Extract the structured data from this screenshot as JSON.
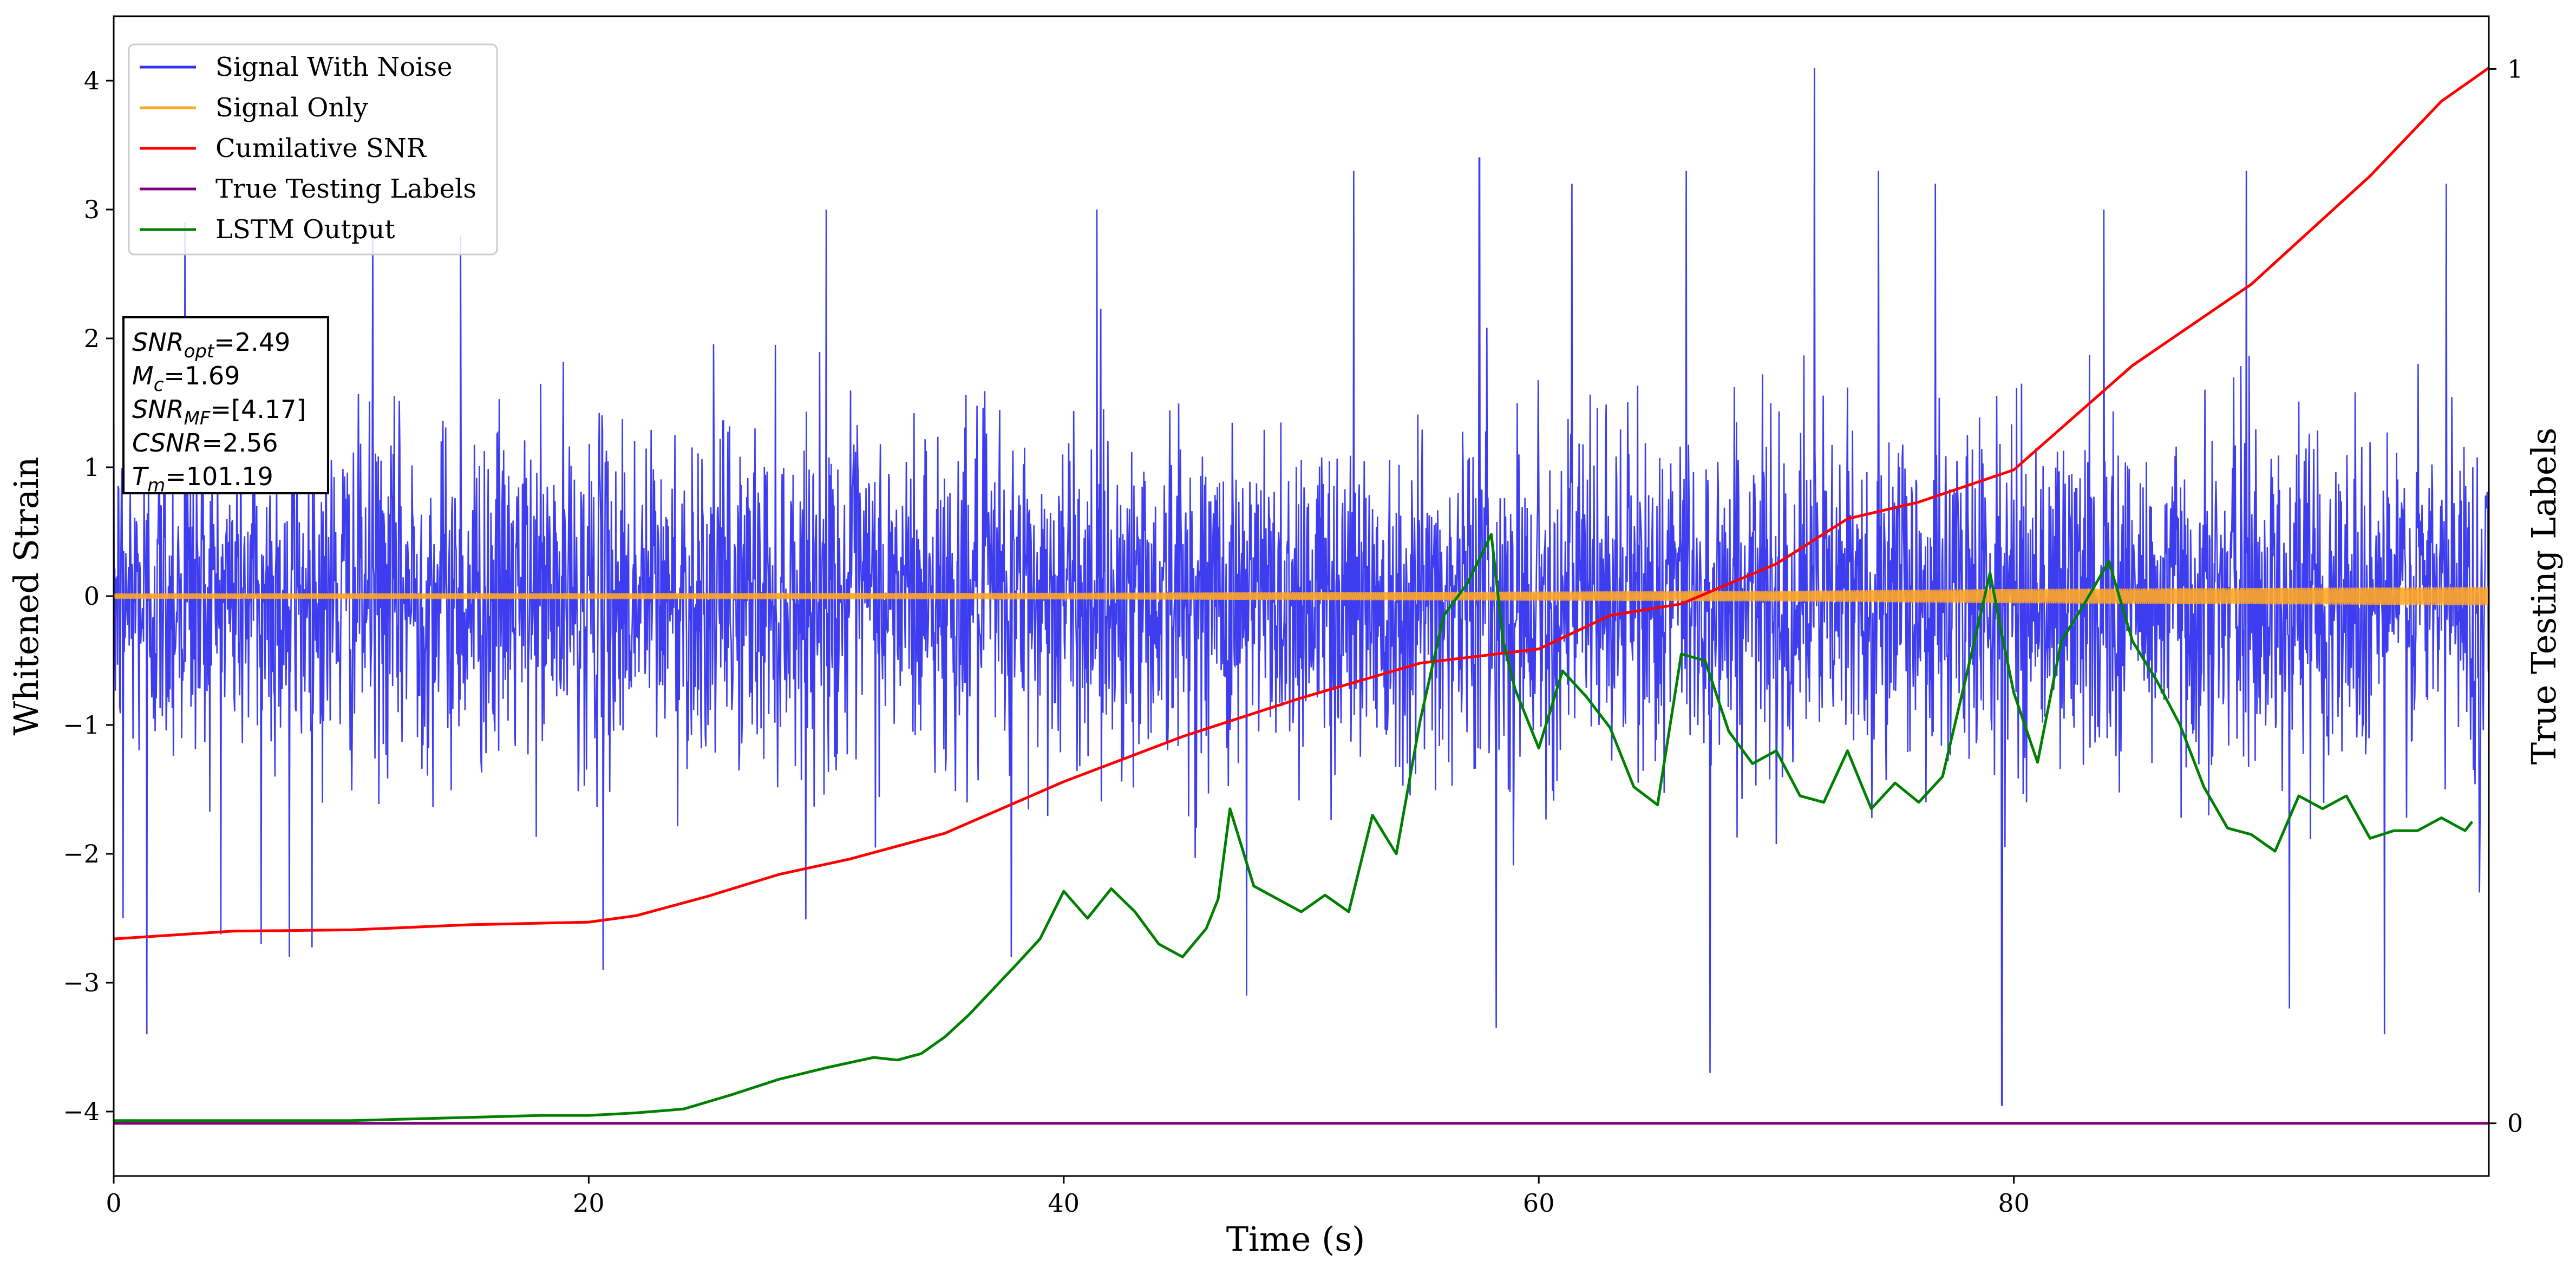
{
  "chart_data": {
    "type": "line",
    "xlabel": "Time (s)",
    "ylabel": "Whitened Strain",
    "ylabel_right": "True Testing Labels",
    "xlim": [
      0,
      100
    ],
    "ylim": [
      -4.5,
      4.5
    ],
    "ylim_right": [
      -0.05,
      1.05
    ],
    "x_ticks": [
      0,
      20,
      40,
      60,
      80
    ],
    "y_ticks": [
      -4,
      -3,
      -2,
      -1,
      0,
      1,
      2,
      3,
      4
    ],
    "y_ticks_right": [
      0,
      1
    ],
    "legend_position": "upper-left",
    "series": [
      {
        "name": "Signal With Noise",
        "color": "#3333ee",
        "axis": "left",
        "noise_sigma": 0.65,
        "x": [
          0.4,
          1.4,
          3.0,
          6.2,
          7.4,
          10.9,
          14.6,
          20.6,
          26.5,
          30.0,
          37.8,
          41.4,
          47.7,
          52.2,
          57.5,
          58.2,
          61.4,
          66.2,
          67.2,
          71.6,
          74.3,
          76.7,
          79.5,
          83.8,
          89.8,
          91.6,
          95.6,
          98.2,
          99.6
        ],
        "values": [
          -2.5,
          -3.4,
          2.9,
          -2.7,
          -2.8,
          2.9,
          2.8,
          -2.9,
          2.8,
          3.0,
          -2.8,
          3.0,
          -3.1,
          3.3,
          3.4,
          -3.35,
          3.2,
          3.3,
          -3.7,
          4.1,
          3.3,
          3.2,
          -3.95,
          3.0,
          3.3,
          -3.2,
          -3.4,
          3.2,
          -2.3
        ]
      },
      {
        "name": "Signal Only",
        "color": "#ffa726",
        "axis": "left",
        "x": [
          0,
          40,
          70,
          80,
          100
        ],
        "amplitude": [
          0.02,
          0.025,
          0.04,
          0.055,
          0.07
        ]
      },
      {
        "name": "Cumilative SNR",
        "color": "#ff0000",
        "axis": "left",
        "x": [
          0,
          5,
          10,
          15,
          20,
          22,
          25,
          28,
          31,
          35,
          40,
          45,
          50,
          55,
          60,
          63,
          66,
          70,
          73,
          76,
          80,
          85,
          90,
          95,
          98,
          99.7,
          100
        ],
        "values": [
          -2.66,
          -2.6,
          -2.59,
          -2.55,
          -2.53,
          -2.48,
          -2.33,
          -2.16,
          -2.04,
          -1.84,
          -1.44,
          -1.09,
          -0.79,
          -0.52,
          -0.41,
          -0.15,
          -0.06,
          0.25,
          0.6,
          0.73,
          0.98,
          1.79,
          2.42,
          3.26,
          3.84,
          4.06,
          4.1
        ]
      },
      {
        "name": "True Testing Labels",
        "color": "#800080",
        "axis": "right",
        "x": [
          0,
          100
        ],
        "values": [
          0,
          0
        ]
      },
      {
        "name": "LSTM Output",
        "color": "#008000",
        "axis": "left",
        "x": [
          0,
          10,
          12,
          14,
          16,
          18,
          20,
          22,
          24,
          26,
          28,
          30,
          32,
          33,
          34,
          35,
          36,
          38,
          39,
          40,
          41,
          42,
          43,
          44,
          45,
          46,
          46.5,
          47,
          48,
          49,
          50,
          51,
          52,
          53,
          54,
          55,
          56,
          57,
          58,
          58.5,
          59,
          60,
          61,
          62,
          63,
          64,
          65,
          66,
          67,
          68,
          69,
          70,
          71,
          72,
          73,
          74,
          75,
          76,
          77,
          78,
          79,
          79.5,
          80,
          81,
          82,
          83,
          84,
          85,
          86,
          87,
          88,
          89,
          90,
          91,
          92,
          93,
          94,
          95,
          96,
          97,
          98,
          99,
          99.3
        ],
        "values": [
          -4.07,
          -4.07,
          -4.06,
          -4.05,
          -4.04,
          -4.03,
          -4.03,
          -4.01,
          -3.98,
          -3.87,
          -3.75,
          -3.66,
          -3.58,
          -3.6,
          -3.55,
          -3.42,
          -3.25,
          -2.86,
          -2.66,
          -2.29,
          -2.5,
          -2.27,
          -2.45,
          -2.7,
          -2.8,
          -2.58,
          -2.35,
          -1.65,
          -2.25,
          -2.35,
          -2.45,
          -2.32,
          -2.45,
          -1.7,
          -2.0,
          -0.97,
          -0.15,
          0.1,
          0.48,
          -0.35,
          -0.72,
          -1.18,
          -0.58,
          -0.78,
          -1.02,
          -1.48,
          -1.62,
          -0.45,
          -0.5,
          -1.05,
          -1.3,
          -1.2,
          -1.55,
          -1.6,
          -1.2,
          -1.65,
          -1.45,
          -1.6,
          -1.4,
          -0.62,
          0.18,
          -0.3,
          -0.75,
          -1.29,
          -0.35,
          -0.05,
          0.27,
          -0.35,
          -0.65,
          -1.0,
          -1.48,
          -1.8,
          -1.85,
          -1.98,
          -1.55,
          -1.65,
          -1.55,
          -1.88,
          -1.82,
          -1.82,
          -1.72,
          -1.82,
          -1.75
        ]
      }
    ],
    "annotation": {
      "lines": [
        {
          "main": "SNR",
          "sub": "opt",
          "value": "=2.49"
        },
        {
          "main": "M",
          "sub": "c",
          "value": "=1.69"
        },
        {
          "main": "SNR",
          "sub": "MF",
          "value": "=[4.17]"
        },
        {
          "main": "CSNR",
          "sub": "",
          "value": "=2.56"
        },
        {
          "main": "T",
          "sub": "m",
          "value": "=101.19"
        }
      ]
    }
  }
}
